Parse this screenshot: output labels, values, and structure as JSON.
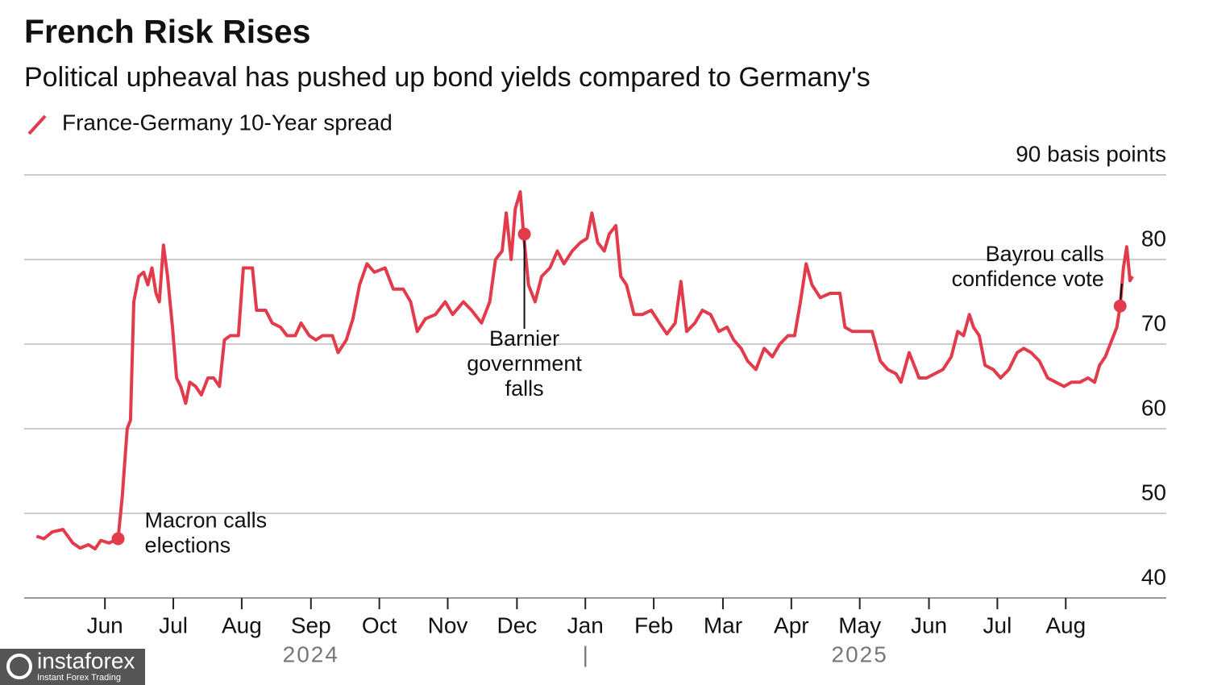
{
  "chart_data": {
    "type": "line",
    "title": "French Risk Rises",
    "subtitle": "Political upheaval has pushed up bond yields compared to Germany's",
    "x": [
      2024.334,
      2024.343,
      2024.353,
      2024.366,
      2024.378,
      2024.387,
      2024.397,
      2024.405,
      2024.412,
      2024.422,
      2024.433,
      2024.438,
      2024.444,
      2024.448,
      2024.452,
      2024.458,
      2024.464,
      2024.469,
      2024.474,
      2024.479,
      2024.483,
      2024.488,
      2024.493,
      2024.499,
      2024.504,
      2024.509,
      2024.515,
      2024.52,
      2024.527,
      2024.534,
      2024.542,
      2024.549,
      2024.556,
      2024.562,
      2024.569,
      2024.579,
      2024.585,
      2024.596,
      2024.601,
      2024.612,
      2024.62,
      2024.63,
      2024.638,
      2024.648,
      2024.655,
      2024.665,
      2024.673,
      2024.681,
      2024.693,
      2024.7,
      2024.71,
      2024.718,
      2024.726,
      2024.735,
      2024.744,
      2024.757,
      2024.767,
      2024.779,
      2024.788,
      2024.796,
      2024.806,
      2024.818,
      2024.83,
      2024.839,
      2024.852,
      2024.862,
      2024.874,
      2024.884,
      2024.891,
      2024.899,
      2024.904,
      2024.91,
      2024.915,
      2024.921,
      2024.925,
      2024.931,
      2024.939,
      2024.947,
      2024.957,
      2024.966,
      2024.974,
      2024.984,
      2024.994,
      2025.002,
      2025.008,
      2025.015,
      2025.023,
      2025.029,
      2025.037,
      2025.043,
      2025.05,
      2025.059,
      2025.069,
      2025.08,
      2025.09,
      2025.099,
      2025.109,
      2025.116,
      2025.123,
      2025.133,
      2025.142,
      2025.152,
      2025.162,
      2025.172,
      2025.18,
      2025.189,
      2025.197,
      2025.207,
      2025.217,
      2025.227,
      2025.236,
      2025.246,
      2025.254,
      2025.261,
      2025.268,
      2025.275,
      2025.285,
      2025.297,
      2025.309,
      2025.315,
      2025.324,
      2025.336,
      2025.348,
      2025.358,
      2025.367,
      2025.377,
      2025.383,
      2025.393,
      2025.405,
      2025.414,
      2025.424,
      2025.434,
      2025.444,
      2025.452,
      2025.459,
      2025.466,
      2025.471,
      2025.478,
      2025.485,
      2025.495,
      2025.504,
      2025.514,
      2025.524,
      2025.532,
      2025.541,
      2025.551,
      2025.561,
      2025.571,
      2025.581,
      2025.59,
      2025.6,
      2025.61,
      2025.618,
      2025.624,
      2025.631,
      2025.639,
      2025.645,
      2025.649,
      2025.653,
      2025.657,
      2025.661,
      2025.664
    ],
    "series": [
      {
        "name": "France-Germany 10-Year spread",
        "color": "#e23b4b",
        "values": [
          47.3,
          47,
          47.8,
          48.1,
          46.5,
          45.9,
          46.3,
          45.8,
          46.8,
          46.5,
          47,
          52,
          60,
          61,
          75,
          78,
          78.5,
          77,
          79,
          76,
          75,
          81.7,
          78,
          72,
          66,
          65,
          63,
          65.5,
          65,
          64,
          66,
          66,
          65,
          70.5,
          71,
          71,
          79,
          79,
          74,
          74,
          72.5,
          72,
          71,
          71,
          72.5,
          71,
          70.5,
          71,
          71,
          69,
          70.5,
          73,
          77,
          79.5,
          78.5,
          79,
          76.5,
          76.5,
          75,
          71.5,
          73,
          73.5,
          75,
          73.5,
          75,
          74,
          72.5,
          75,
          80,
          81,
          85.5,
          80,
          86,
          88,
          83,
          77,
          75,
          78,
          79,
          81,
          79.5,
          81,
          82,
          82.5,
          85.5,
          82,
          81,
          83,
          84,
          78,
          77,
          73.5,
          73.5,
          74,
          72.5,
          71.2,
          72.5,
          77.4,
          71.5,
          72.5,
          74,
          73.5,
          71.5,
          72,
          70.5,
          69.5,
          68,
          67,
          69.5,
          68.5,
          70,
          71,
          71,
          75,
          79.5,
          77,
          75.5,
          76,
          76,
          72,
          71.5,
          71.5,
          71.5,
          68,
          67,
          66.5,
          65.5,
          69,
          66,
          66,
          66.5,
          67,
          68.5,
          71.5,
          71,
          73.5,
          72,
          71,
          67.5,
          67,
          66,
          67,
          69,
          69.5,
          69,
          68,
          66,
          65.5,
          65,
          65.5,
          65.5,
          66,
          65.5,
          67.5,
          68.5,
          70.5,
          72,
          74.5,
          79,
          81.5,
          77.5,
          78
        ]
      }
    ],
    "xlim": [
      2024.319,
      2025.705
    ],
    "xticks": [
      {
        "value": 2024.417,
        "label": "Jun"
      },
      {
        "value": 2024.5,
        "label": "Jul"
      },
      {
        "value": 2024.583,
        "label": "Aug"
      },
      {
        "value": 2024.667,
        "label": "Sep"
      },
      {
        "value": 2024.75,
        "label": "Oct"
      },
      {
        "value": 2024.833,
        "label": "Nov"
      },
      {
        "value": 2024.917,
        "label": "Dec"
      },
      {
        "value": 2025,
        "label": "Jan"
      },
      {
        "value": 2025.083,
        "label": "Feb"
      },
      {
        "value": 2025.167,
        "label": "Mar"
      },
      {
        "value": 2025.25,
        "label": "Apr"
      },
      {
        "value": 2025.333,
        "label": "May"
      },
      {
        "value": 2025.417,
        "label": "Jun"
      },
      {
        "value": 2025.5,
        "label": "Jul"
      },
      {
        "value": 2025.583,
        "label": "Aug"
      }
    ],
    "year_labels": [
      "2024",
      "2025"
    ],
    "year_separator": "|",
    "ylim": [
      40,
      90
    ],
    "yticks": [
      40,
      50,
      60,
      70,
      80,
      {
        "value": 90,
        "label": "90 basis points"
      }
    ],
    "grid": true,
    "annotations": [
      {
        "lines": [
          "Macron calls",
          "elections"
        ],
        "x": 2024.433,
        "y": 47
      },
      {
        "lines": [
          "Barnier",
          "government",
          "falls"
        ],
        "x": 2024.926,
        "y": 83
      },
      {
        "lines": [
          "Bayrou calls",
          "confidence vote"
        ],
        "x": 2025.649,
        "y": 74.5
      }
    ]
  },
  "watermark": {
    "brand": "instaforex",
    "tagline": "Instant Forex Trading"
  }
}
